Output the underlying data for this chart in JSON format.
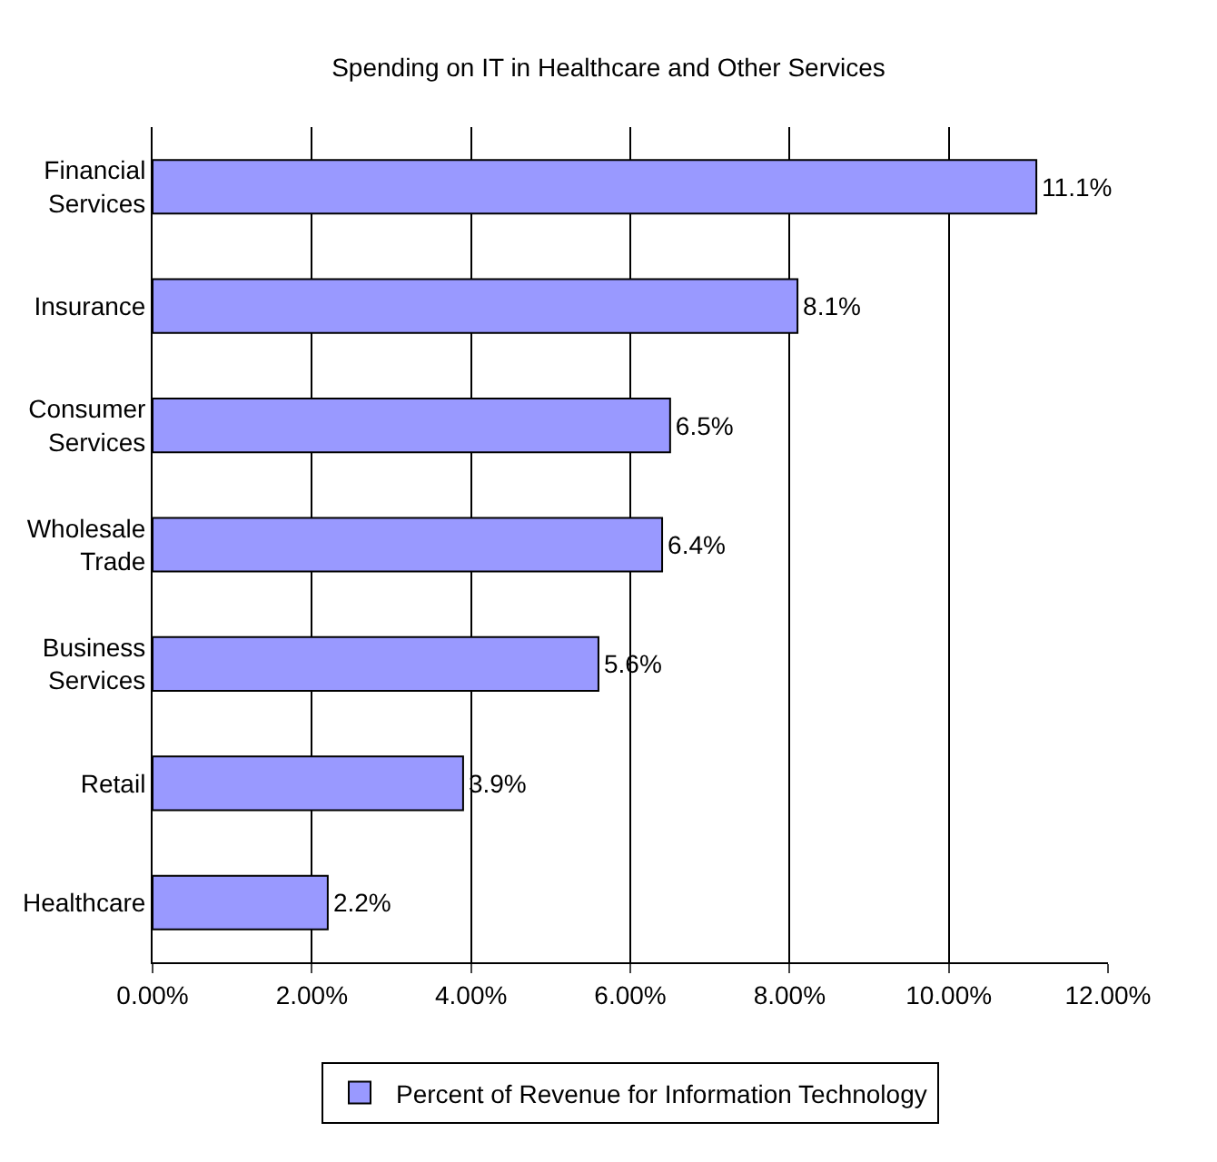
{
  "chart_data": {
    "type": "bar",
    "orientation": "horizontal",
    "title": "Spending on IT in Healthcare and Other Services",
    "categories": [
      "Financial Services",
      "Insurance",
      "Consumer Services",
      "Wholesale Trade",
      "Business Services",
      "Retail",
      "Healthcare"
    ],
    "series": [
      {
        "name": "Percent of Revenue for Information Technology",
        "color": "#9999ff",
        "values": [
          11.1,
          8.1,
          6.5,
          6.4,
          5.6,
          3.9,
          2.2
        ],
        "value_labels": [
          "11.1%",
          "8.1%",
          "6.5%",
          "6.4%",
          "5.6%",
          "3.9%",
          "2.2%"
        ]
      }
    ],
    "xlim": [
      0,
      12
    ],
    "xticks": [
      {
        "value": 0,
        "label": "0.00%"
      },
      {
        "value": 2,
        "label": "2.00%"
      },
      {
        "value": 4,
        "label": "4.00%"
      },
      {
        "value": 6,
        "label": "6.00%"
      },
      {
        "value": 8,
        "label": "8.00%"
      },
      {
        "value": 10,
        "label": "10.00%"
      },
      {
        "value": 12,
        "label": "12.00%"
      }
    ],
    "grid": "x",
    "legend": "bottom"
  }
}
